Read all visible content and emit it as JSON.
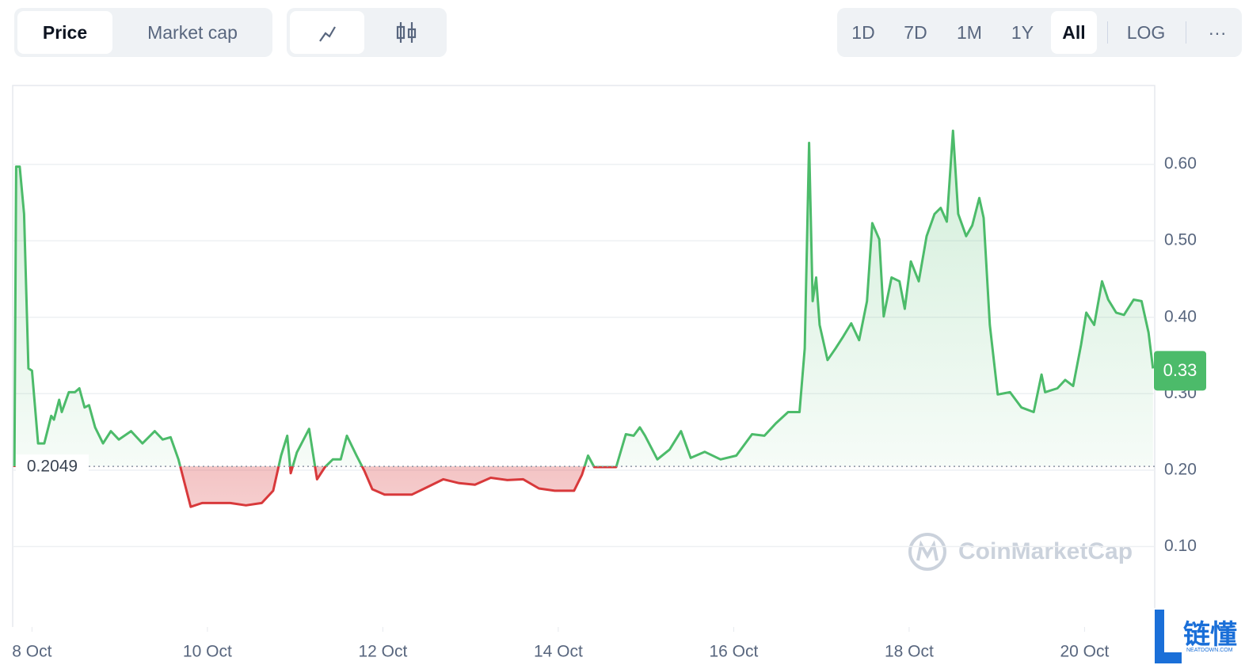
{
  "toolbar": {
    "metric_tabs": [
      "Price",
      "Market cap"
    ],
    "range_buttons": [
      "1D",
      "7D",
      "1M",
      "1Y",
      "All"
    ],
    "scale_button": "LOG",
    "more_button": "···"
  },
  "chart_data": {
    "type": "area",
    "x": [
      -0.2,
      -0.18,
      -0.14,
      -0.09,
      -0.04,
      0,
      0.07,
      0.14,
      0.22,
      0.25,
      0.31,
      0.34,
      0.42,
      0.49,
      0.54,
      0.6,
      0.65,
      0.72,
      0.81,
      0.9,
      0.99,
      1.13,
      1.26,
      1.4,
      1.49,
      1.58,
      1.67,
      1.81,
      1.94,
      2.08,
      2.26,
      2.44,
      2.62,
      2.75,
      2.84,
      2.91,
      2.95,
      3.02,
      3.16,
      3.25,
      3.34,
      3.43,
      3.52,
      3.59,
      3.7,
      3.79,
      3.88,
      4.02,
      4.15,
      4.33,
      4.51,
      4.69,
      4.87,
      5.05,
      5.23,
      5.42,
      5.6,
      5.78,
      5.96,
      6.18,
      6.27,
      6.34,
      6.41,
      6.5,
      6.66,
      6.77,
      6.86,
      6.93,
      6.99,
      7.13,
      7.27,
      7.4,
      7.51,
      7.67,
      7.85,
      8.03,
      8.21,
      8.35,
      8.48,
      8.62,
      8.75,
      8.81,
      8.86,
      8.9,
      8.94,
      8.98,
      9.07,
      9.16,
      9.25,
      9.34,
      9.43,
      9.52,
      9.58,
      9.66,
      9.71,
      9.8,
      9.89,
      9.95,
      10.02,
      10.11,
      10.2,
      10.29,
      10.36,
      10.43,
      10.5,
      10.56,
      10.65,
      10.72,
      10.8,
      10.85,
      10.92,
      11.01,
      11.15,
      11.28,
      11.42,
      11.51,
      11.55,
      11.69,
      11.78,
      11.87,
      11.96,
      12.02,
      12.11,
      12.2,
      12.27,
      12.36,
      12.45,
      12.56,
      12.65,
      12.73,
      12.78
    ],
    "values": [
      0.204,
      0.597,
      0.597,
      0.535,
      0.333,
      0.33,
      0.235,
      0.235,
      0.271,
      0.266,
      0.292,
      0.276,
      0.302,
      0.302,
      0.307,
      0.282,
      0.285,
      0.256,
      0.235,
      0.251,
      0.24,
      0.251,
      0.235,
      0.251,
      0.24,
      0.243,
      0.214,
      0.152,
      0.157,
      0.157,
      0.157,
      0.154,
      0.157,
      0.173,
      0.219,
      0.245,
      0.196,
      0.223,
      0.254,
      0.188,
      0.204,
      0.214,
      0.214,
      0.245,
      0.219,
      0.199,
      0.175,
      0.168,
      0.168,
      0.168,
      0.178,
      0.188,
      0.183,
      0.181,
      0.19,
      0.187,
      0.188,
      0.176,
      0.173,
      0.173,
      0.194,
      0.219,
      0.204,
      0.204,
      0.204,
      0.247,
      0.245,
      0.256,
      0.245,
      0.214,
      0.227,
      0.251,
      0.216,
      0.224,
      0.214,
      0.219,
      0.247,
      0.245,
      0.261,
      0.276,
      0.276,
      0.359,
      0.628,
      0.421,
      0.452,
      0.39,
      0.344,
      0.359,
      0.375,
      0.392,
      0.37,
      0.421,
      0.523,
      0.502,
      0.401,
      0.452,
      0.447,
      0.411,
      0.473,
      0.447,
      0.506,
      0.535,
      0.543,
      0.525,
      0.644,
      0.535,
      0.506,
      0.52,
      0.556,
      0.53,
      0.39,
      0.299,
      0.302,
      0.282,
      0.276,
      0.325,
      0.302,
      0.307,
      0.318,
      0.31,
      0.364,
      0.406,
      0.39,
      0.447,
      0.423,
      0.406,
      0.403,
      0.423,
      0.421,
      0.38,
      0.333
    ],
    "color_up": "#4cbb6a",
    "color_down": "#d8393b",
    "baseline": 0.2049,
    "last_price": 0.33,
    "xlim": [
      -0.22,
      12.8
    ],
    "xticks": [
      {
        "value": 0,
        "label": "8 Oct"
      },
      {
        "value": 2,
        "label": "10 Oct"
      },
      {
        "value": 4,
        "label": "12 Oct"
      },
      {
        "value": 6,
        "label": "14 Oct"
      },
      {
        "value": 8,
        "label": "16 Oct"
      },
      {
        "value": 10,
        "label": "18 Oct"
      },
      {
        "value": 12,
        "label": "20 Oct"
      }
    ],
    "ylim": [
      0,
      0.7
    ],
    "yticks": [
      {
        "value": 0.1,
        "label": "0.10"
      },
      {
        "value": 0.2,
        "label": "0.20"
      },
      {
        "value": 0.3,
        "label": "0.30"
      },
      {
        "value": 0.4,
        "label": "0.40"
      },
      {
        "value": 0.5,
        "label": "0.50"
      },
      {
        "value": 0.6,
        "label": "0.60"
      }
    ],
    "grid": true,
    "watermark": "CoinMarketCap"
  },
  "overlay": {
    "logo": "链懂",
    "site": "NEATDOWN.COM"
  }
}
